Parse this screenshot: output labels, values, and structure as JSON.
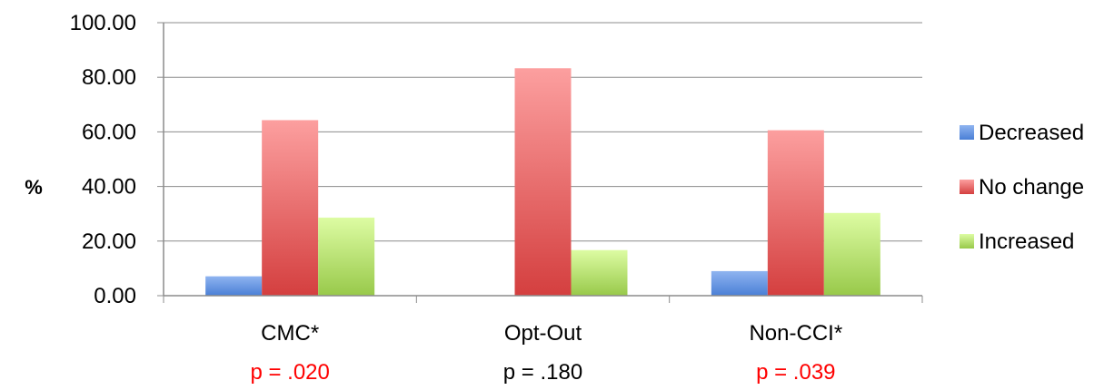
{
  "chart_data": {
    "type": "bar",
    "title": "",
    "xlabel": "",
    "ylabel": "%",
    "ylim": [
      0,
      100
    ],
    "yticks": [
      "0.00",
      "20.00",
      "40.00",
      "60.00",
      "80.00",
      "100.00"
    ],
    "grid": "horizontal",
    "legend_position": "right",
    "categories": [
      "CMC*",
      "Opt-Out",
      "Non-CCI*"
    ],
    "p_values": [
      "p = .020",
      "p = .180",
      "p = .039"
    ],
    "p_colors": [
      "#ff0000",
      "#000000",
      "#ff0000"
    ],
    "series": [
      {
        "name": "Decreased",
        "values": [
          7.1,
          0,
          9.0
        ],
        "color_top": "#8fb4f0",
        "color_bottom": "#4a7fd6"
      },
      {
        "name": "No change",
        "values": [
          64.3,
          83.3,
          60.6
        ],
        "color_top": "#fc9f9f",
        "color_bottom": "#d43f3f"
      },
      {
        "name": "Increased",
        "values": [
          28.6,
          16.7,
          30.3
        ],
        "color_top": "#ddfca3",
        "color_bottom": "#98c94a"
      }
    ]
  }
}
